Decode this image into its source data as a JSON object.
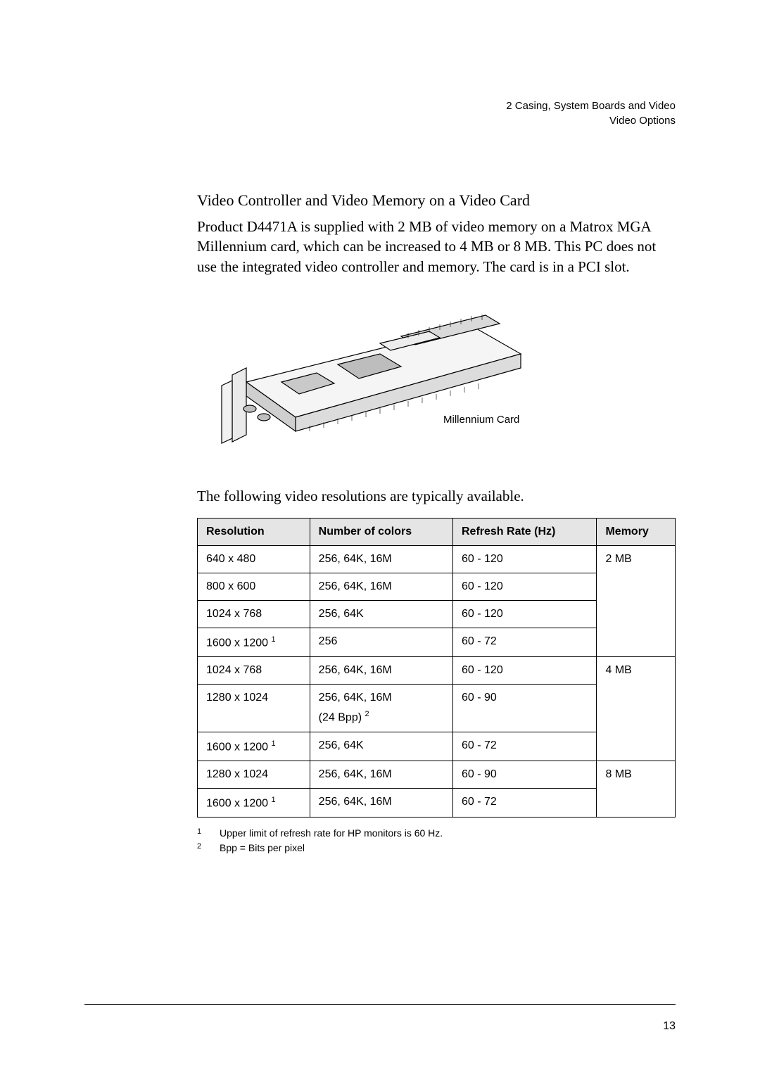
{
  "header": {
    "chapter": "2   Casing, System Boards and Video",
    "sub": "Video Options"
  },
  "section": {
    "title": "Video Controller and Video Memory on a Video Card",
    "body": "Product D4471A is supplied with 2 MB of video memory on a Matrox MGA Millennium card, which can be increased to 4 MB or 8 MB. This PC does not use the integrated video controller and memory. The card is in a PCI slot."
  },
  "figure": {
    "caption": "Millennium Card"
  },
  "table": {
    "lead": "The following video resolutions are typically available.",
    "columns": [
      "Resolution",
      "Number of colors",
      "Refresh Rate (Hz)",
      "Memory"
    ],
    "rows": [
      {
        "resolution": "640 x 480",
        "sup": "",
        "colors": "256, 64K, 16M",
        "bpp": "",
        "refresh": "60 - 120",
        "memory": "2 MB",
        "mem_span": 4
      },
      {
        "resolution": "800 x 600",
        "sup": "",
        "colors": "256, 64K, 16M",
        "bpp": "",
        "refresh": "60 - 120",
        "memory": "",
        "mem_span": 0
      },
      {
        "resolution": "1024 x 768",
        "sup": "",
        "colors": "256, 64K",
        "bpp": "",
        "refresh": "60 - 120",
        "memory": "",
        "mem_span": 0
      },
      {
        "resolution": "1600 x 1200",
        "sup": "1",
        "colors": "256",
        "bpp": "",
        "refresh": "60 - 72",
        "memory": "",
        "mem_span": 0
      },
      {
        "resolution": "1024 x 768",
        "sup": "",
        "colors": "256, 64K, 16M",
        "bpp": "",
        "refresh": "60 - 120",
        "memory": "4 MB",
        "mem_span": 3
      },
      {
        "resolution": "1280 x 1024",
        "sup": "",
        "colors": "256, 64K, 16M",
        "bpp": "(24 Bpp)",
        "bpp_sup": "2",
        "refresh": "60 - 90",
        "memory": "",
        "mem_span": 0
      },
      {
        "resolution": "1600 x 1200",
        "sup": "1",
        "colors": "256, 64K",
        "bpp": "",
        "refresh": "60 - 72",
        "memory": "",
        "mem_span": 0
      },
      {
        "resolution": "1280 x 1024",
        "sup": "",
        "colors": "256, 64K, 16M",
        "bpp": "",
        "refresh": "60 - 90",
        "memory": "8 MB",
        "mem_span": 2
      },
      {
        "resolution": "1600 x 1200",
        "sup": "1",
        "colors": "256, 64K, 16M",
        "bpp": "",
        "refresh": "60 - 72",
        "memory": "",
        "mem_span": 0
      }
    ]
  },
  "footnotes": [
    {
      "num": "1",
      "text": "Upper limit of refresh rate for HP monitors is 60 Hz."
    },
    {
      "num": "2",
      "text": "Bpp  =  Bits per pixel"
    }
  ],
  "page_number": "13",
  "colors": {
    "background": "#ffffff",
    "text": "#000000",
    "th_bg": "#e5e5e5",
    "border": "#000000"
  },
  "typography": {
    "header_font": "Helvetica",
    "body_font": "Times New Roman",
    "section_title_size_pt": 16,
    "body_size_pt": 15,
    "table_size_pt": 12,
    "footnote_size_pt": 10
  }
}
